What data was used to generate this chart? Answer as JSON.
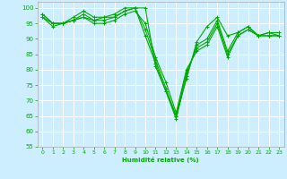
{
  "xlabel": "Humidité relative (%)",
  "xlim": [
    -0.5,
    23.5
  ],
  "ylim": [
    55,
    102
  ],
  "yticks": [
    55,
    60,
    65,
    70,
    75,
    80,
    85,
    90,
    95,
    100
  ],
  "xticks": [
    0,
    1,
    2,
    3,
    4,
    5,
    6,
    7,
    8,
    9,
    10,
    11,
    12,
    13,
    14,
    15,
    16,
    17,
    18,
    19,
    20,
    21,
    22,
    23
  ],
  "background_color": "#cceeff",
  "grid_color": "#ffffff",
  "line_color": "#00aa00",
  "series": [
    [
      98,
      95,
      95,
      97,
      99,
      97,
      97,
      97,
      99,
      100,
      100,
      81,
      73,
      65,
      77,
      89,
      94,
      97,
      91,
      92,
      94,
      91,
      92,
      92
    ],
    [
      97,
      95,
      95,
      96,
      98,
      96,
      97,
      98,
      100,
      100,
      91,
      82,
      73,
      64,
      78,
      88,
      90,
      96,
      86,
      92,
      94,
      91,
      92,
      91
    ],
    [
      98,
      95,
      95,
      96,
      97,
      96,
      96,
      97,
      99,
      100,
      93,
      83,
      74,
      65,
      79,
      87,
      89,
      95,
      85,
      91,
      93,
      91,
      91,
      91
    ],
    [
      97,
      94,
      95,
      96,
      97,
      95,
      95,
      96,
      98,
      99,
      95,
      84,
      76,
      66,
      80,
      86,
      88,
      94,
      84,
      91,
      93,
      91,
      91,
      91
    ]
  ]
}
